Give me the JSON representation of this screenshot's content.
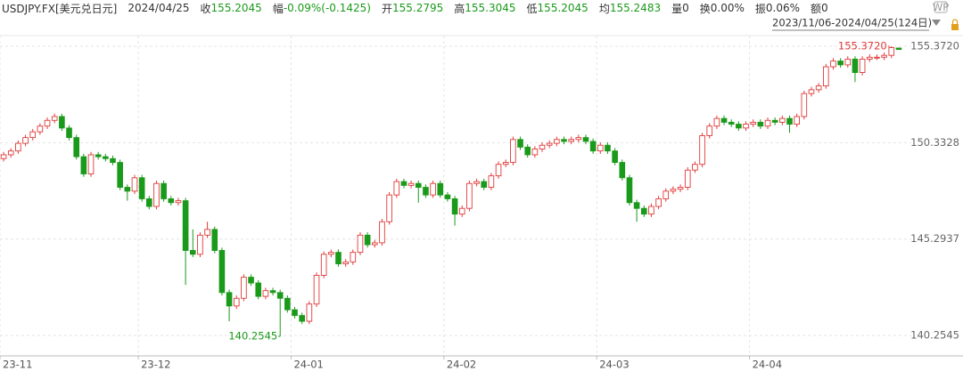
{
  "chart_data": {
    "type": "candlestick",
    "title": "USDJPY.FX[美元兑日元]",
    "header": {
      "date": "2024/04/25",
      "fields": [
        {
          "label": "收",
          "value": "155.2045",
          "color": "#1a9a1a"
        },
        {
          "label": "幅",
          "value": "-0.09%(-0.1425)",
          "color": "#1a9a1a"
        },
        {
          "label": "开",
          "value": "155.2795",
          "color": "#1a9a1a"
        },
        {
          "label": "高",
          "value": "155.3045",
          "color": "#1a9a1a"
        },
        {
          "label": "低",
          "value": "155.2045",
          "color": "#1a9a1a"
        },
        {
          "label": "均",
          "value": "155.2483",
          "color": "#1a9a1a"
        },
        {
          "label": "量",
          "value": "0",
          "color": "#333333"
        },
        {
          "label": "换",
          "value": "0.00%",
          "color": "#333333"
        },
        {
          "label": "振",
          "value": "0.06%",
          "color": "#333333"
        },
        {
          "label": "额",
          "value": "0",
          "color": "#333333"
        }
      ]
    },
    "range_label": "2023/11/06-2024/04/25(124日)",
    "max_label": "155.3720",
    "min_label": "140.2545",
    "up_color": "#e03a3a",
    "down_color": "#1a9a1a",
    "ylim": [
      139.19,
      155.93
    ],
    "yticks": [
      140.2545,
      145.2937,
      150.3328,
      {
        "value": 155.372,
        "label": "155.3720"
      }
    ],
    "grid": true,
    "categories": [
      "23-11",
      null,
      null,
      null,
      null,
      null,
      null,
      null,
      null,
      null,
      null,
      null,
      null,
      null,
      null,
      null,
      null,
      null,
      null,
      "23-12",
      null,
      null,
      null,
      null,
      null,
      null,
      null,
      null,
      null,
      null,
      null,
      null,
      null,
      null,
      null,
      null,
      null,
      null,
      null,
      null,
      "24-01",
      null,
      null,
      null,
      null,
      null,
      null,
      null,
      null,
      null,
      null,
      null,
      null,
      null,
      null,
      null,
      null,
      null,
      null,
      null,
      null,
      "24-02",
      null,
      null,
      null,
      null,
      null,
      null,
      null,
      null,
      null,
      null,
      null,
      null,
      null,
      null,
      null,
      null,
      null,
      null,
      null,
      null,
      "24-03",
      null,
      null,
      null,
      null,
      null,
      null,
      null,
      null,
      null,
      null,
      null,
      null,
      null,
      null,
      null,
      null,
      null,
      null,
      null,
      null,
      "24-04",
      null,
      null,
      null,
      null,
      null,
      null,
      null,
      null,
      null,
      null,
      null,
      null,
      null,
      null,
      null,
      null,
      null,
      null,
      null,
      null
    ],
    "open": [
      149.5,
      149.7,
      149.9,
      150.3,
      150.6,
      150.9,
      151.2,
      151.5,
      151.7,
      151.1,
      150.6,
      149.6,
      148.7,
      149.7,
      149.6,
      149.5,
      149.3,
      148.0,
      147.8,
      148.5,
      147.4,
      147.0,
      148.2,
      147.4,
      147.2,
      147.3,
      144.7,
      144.5,
      145.5,
      145.8,
      144.7,
      142.5,
      141.8,
      142.2,
      143.3,
      143.0,
      142.3,
      142.6,
      142.5,
      142.2,
      141.6,
      141.3,
      141.0,
      141.9,
      143.4,
      144.5,
      144.6,
      144.0,
      144.1,
      144.6,
      145.5,
      145.0,
      145.1,
      146.2,
      147.6,
      148.3,
      148.1,
      148.2,
      148.0,
      147.6,
      148.2,
      147.6,
      147.4,
      146.6,
      146.9,
      148.2,
      148.3,
      148.0,
      148.6,
      149.2,
      149.3,
      150.5,
      150.1,
      149.7,
      150.0,
      150.2,
      150.3,
      150.5,
      150.4,
      150.5,
      150.6,
      150.4,
      149.9,
      150.2,
      149.9,
      149.3,
      148.5,
      147.2,
      146.9,
      146.6,
      147.0,
      147.4,
      147.8,
      147.9,
      148.0,
      148.9,
      149.2,
      150.7,
      151.2,
      151.6,
      151.4,
      151.3,
      151.1,
      151.3,
      151.4,
      151.2,
      151.5,
      151.4,
      151.6,
      151.3,
      151.7,
      152.9,
      153.1,
      153.3,
      154.3,
      154.6,
      154.4,
      154.7,
      154.0,
      154.7,
      154.8,
      154.8,
      154.9,
      155.2795
    ],
    "high": [
      149.85,
      150.05,
      150.45,
      150.75,
      151.05,
      151.35,
      151.65,
      151.85,
      151.85,
      151.25,
      150.75,
      149.75,
      149.85,
      149.85,
      149.75,
      149.65,
      149.45,
      148.15,
      148.65,
      148.65,
      147.55,
      148.35,
      148.35,
      147.55,
      147.45,
      147.45,
      145.8,
      145.65,
      146.2,
      145.95,
      144.85,
      142.65,
      142.35,
      143.45,
      143.45,
      143.15,
      142.75,
      142.75,
      142.65,
      142.35,
      141.75,
      141.45,
      142.05,
      143.55,
      144.65,
      144.75,
      144.75,
      144.25,
      144.75,
      145.65,
      145.65,
      145.25,
      146.35,
      147.75,
      148.45,
      148.45,
      148.35,
      148.35,
      148.15,
      148.35,
      148.35,
      147.75,
      147.55,
      147.05,
      148.35,
      148.45,
      148.45,
      148.75,
      149.35,
      149.45,
      150.65,
      150.65,
      150.25,
      150.15,
      150.35,
      150.45,
      150.65,
      150.65,
      150.65,
      150.75,
      150.75,
      150.55,
      150.35,
      150.35,
      150.05,
      149.45,
      148.65,
      147.35,
      147.05,
      147.15,
      147.55,
      147.95,
      148.05,
      148.15,
      149.05,
      149.35,
      150.85,
      151.35,
      151.75,
      151.75,
      151.55,
      151.45,
      151.45,
      151.55,
      151.55,
      151.65,
      151.65,
      151.75,
      151.75,
      151.85,
      153.05,
      153.25,
      153.45,
      154.45,
      154.75,
      154.75,
      154.85,
      154.85,
      154.85,
      154.95,
      154.95,
      155.05,
      155.372,
      155.3045
    ],
    "low": [
      149.35,
      149.55,
      149.75,
      150.15,
      150.45,
      150.75,
      151.05,
      151.35,
      150.95,
      150.45,
      149.45,
      148.55,
      148.55,
      149.45,
      149.35,
      149.15,
      147.85,
      147.3,
      147.65,
      147.25,
      146.85,
      146.85,
      147.25,
      147.05,
      147.05,
      142.9,
      144.35,
      144.35,
      145.35,
      144.55,
      142.35,
      141.0,
      141.65,
      142.05,
      142.85,
      142.15,
      142.15,
      142.35,
      140.2545,
      141.45,
      141.15,
      140.85,
      140.85,
      141.75,
      143.25,
      144.35,
      143.85,
      143.85,
      143.95,
      144.45,
      144.85,
      144.85,
      144.95,
      146.05,
      147.45,
      147.95,
      147.95,
      147.2,
      147.45,
      147.45,
      147.45,
      147.25,
      146.0,
      146.45,
      146.75,
      148.05,
      147.85,
      147.85,
      148.45,
      149.05,
      149.15,
      149.95,
      149.55,
      149.55,
      149.85,
      150.05,
      150.15,
      150.25,
      150.25,
      150.35,
      150.25,
      149.75,
      149.75,
      149.75,
      149.15,
      148.35,
      147.05,
      146.2,
      146.45,
      146.45,
      146.85,
      147.25,
      147.65,
      147.75,
      147.85,
      148.75,
      149.05,
      150.55,
      151.05,
      151.25,
      151.15,
      150.95,
      150.95,
      151.15,
      151.05,
      151.05,
      151.25,
      151.25,
      150.85,
      151.15,
      151.55,
      152.75,
      152.95,
      153.15,
      154.15,
      154.25,
      154.25,
      153.5,
      153.85,
      154.55,
      154.65,
      154.65,
      154.75,
      155.2045
    ],
    "close": [
      149.7,
      149.9,
      150.3,
      150.6,
      150.9,
      151.2,
      151.5,
      151.7,
      151.1,
      150.6,
      149.6,
      148.7,
      149.7,
      149.6,
      149.5,
      149.3,
      148.0,
      147.8,
      148.5,
      147.4,
      147.0,
      148.2,
      147.4,
      147.2,
      147.3,
      144.7,
      144.5,
      145.5,
      145.8,
      144.7,
      142.5,
      141.8,
      142.2,
      143.3,
      143.0,
      142.3,
      142.6,
      142.5,
      142.2,
      141.6,
      141.3,
      141.0,
      141.9,
      143.4,
      144.5,
      144.6,
      144.0,
      144.1,
      144.6,
      145.5,
      145.0,
      145.1,
      146.2,
      147.6,
      148.3,
      148.1,
      148.2,
      148.0,
      147.6,
      148.2,
      147.6,
      147.4,
      146.6,
      146.9,
      148.2,
      148.3,
      148.0,
      148.6,
      149.2,
      149.3,
      150.5,
      150.1,
      149.7,
      150.0,
      150.2,
      150.3,
      150.5,
      150.4,
      150.5,
      150.6,
      150.4,
      149.9,
      150.2,
      149.9,
      149.3,
      148.5,
      147.2,
      146.9,
      146.6,
      147.0,
      147.4,
      147.8,
      147.9,
      148.0,
      148.9,
      149.2,
      150.7,
      151.2,
      151.6,
      151.4,
      151.3,
      151.1,
      151.3,
      151.4,
      151.2,
      151.5,
      151.4,
      151.6,
      151.3,
      151.7,
      152.9,
      153.1,
      153.3,
      154.3,
      154.6,
      154.4,
      154.7,
      154.0,
      154.7,
      154.8,
      154.8,
      154.9,
      155.3,
      155.2045
    ]
  }
}
